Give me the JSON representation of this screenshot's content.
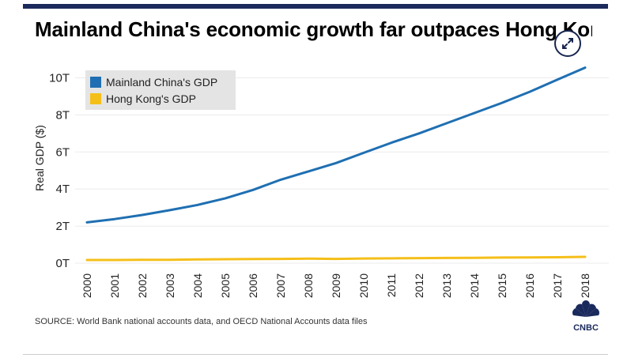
{
  "page": {
    "title": "Mainland China's economic growth far outpaces Hong Kong",
    "source": "SOURCE: World Bank national accounts data, and OECD National Accounts data files",
    "logo_text": "CNBC"
  },
  "colors": {
    "china": "#1f6fb2",
    "hongkong": "#f5bf1a",
    "header_bar": "#1b2a5c"
  },
  "icons": {
    "expand": "expand-arrows-icon",
    "logo": "cnbc-peacock-icon"
  },
  "chart_data": {
    "type": "line",
    "title": "Mainland China's economic growth far outpaces Hong Kong",
    "xlabel": "",
    "ylabel": "Real GDP ($)",
    "x": [
      "2000",
      "2001",
      "2002",
      "2003",
      "2004",
      "2005",
      "2006",
      "2007",
      "2008",
      "2009",
      "2010",
      "2011",
      "2012",
      "2013",
      "2014",
      "2015",
      "2016",
      "2017",
      "2018"
    ],
    "ytick_values": [
      0,
      2,
      4,
      6,
      8,
      10
    ],
    "yticks": [
      "0T",
      "2T",
      "4T",
      "6T",
      "8T",
      "10T"
    ],
    "ylim": [
      -0.3,
      11.3
    ],
    "legend": [
      "Mainland China's GDP",
      "Hong Kong's GDP"
    ],
    "legend_position": "top-left",
    "grid": true,
    "series": [
      {
        "name": "Mainland China's GDP",
        "values": [
          2.2,
          2.38,
          2.6,
          2.86,
          3.14,
          3.5,
          3.95,
          4.5,
          4.95,
          5.4,
          5.95,
          6.5,
          7.0,
          7.55,
          8.1,
          8.65,
          9.25,
          9.9,
          10.55
        ]
      },
      {
        "name": "Hong Kong's GDP",
        "values": [
          0.17,
          0.17,
          0.18,
          0.18,
          0.2,
          0.21,
          0.22,
          0.23,
          0.24,
          0.23,
          0.25,
          0.26,
          0.27,
          0.28,
          0.29,
          0.3,
          0.31,
          0.32,
          0.34
        ]
      }
    ]
  }
}
